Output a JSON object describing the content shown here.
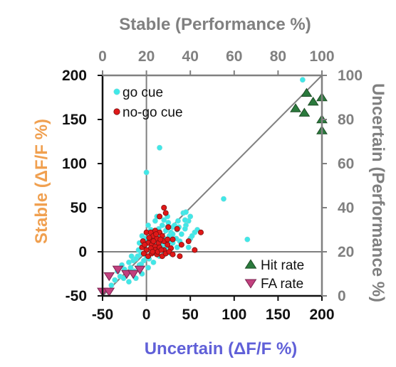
{
  "chart_data": {
    "type": "scatter",
    "title": "",
    "xlabel": "Uncertain (ΔF/F %)",
    "ylabel": "Stable (ΔF/F %)",
    "top_xlabel": "Stable (Performance %)",
    "right_ylabel": "Uncertain (Performance %)",
    "xlim": [
      -50,
      200
    ],
    "ylim": [
      -50,
      200
    ],
    "x_ticks": [
      "-50",
      "0",
      "50",
      "100",
      "150",
      "200"
    ],
    "y_ticks": [
      "-50",
      "0",
      "50",
      "100",
      "150",
      "200"
    ],
    "top_xlim": [
      0,
      100
    ],
    "top_ticks": [
      "0",
      "20",
      "40",
      "60",
      "80",
      "100"
    ],
    "right_ylim": [
      0,
      100
    ],
    "right_ticks": [
      "0",
      "20",
      "40",
      "60",
      "80",
      "100"
    ],
    "grid": false,
    "reference_lines": {
      "x": 0,
      "y": 0,
      "diagonal": true
    },
    "legend_upper": {
      "placement": "top-left"
    },
    "legend_lower": {
      "placement": "bottom-right"
    },
    "colors": {
      "go": "#40e8e8",
      "nogo": "#e01818",
      "hit": "#2a7a3c",
      "fa": "#c2407e",
      "axis_left_title": "#f0a050",
      "axis_bottom_title": "#6060d8",
      "gray": "#808080"
    },
    "series": [
      {
        "name": "go cue",
        "kind": "dF/F",
        "marker": "circle",
        "points": [
          [
            178,
            195
          ],
          [
            15,
            118
          ],
          [
            0,
            90
          ],
          [
            88,
            60
          ],
          [
            115,
            14
          ],
          [
            48,
            35
          ],
          [
            50,
            15
          ],
          [
            40,
            20
          ],
          [
            45,
            30
          ],
          [
            35,
            25
          ],
          [
            30,
            28
          ],
          [
            25,
            33
          ],
          [
            28,
            22
          ],
          [
            38,
            12
          ],
          [
            50,
            40
          ],
          [
            42,
            44
          ],
          [
            45,
            45
          ],
          [
            20,
            15
          ],
          [
            15,
            20
          ],
          [
            10,
            18
          ],
          [
            5,
            25
          ],
          [
            -5,
            18
          ],
          [
            -8,
            10
          ],
          [
            2,
            30
          ],
          [
            8,
            22
          ],
          [
            12,
            12
          ],
          [
            18,
            8
          ],
          [
            22,
            5
          ],
          [
            26,
            18
          ],
          [
            30,
            10
          ],
          [
            34,
            15
          ],
          [
            32,
            30
          ],
          [
            36,
            35
          ],
          [
            24,
            28
          ],
          [
            18,
            30
          ],
          [
            14,
            26
          ],
          [
            6,
            14
          ],
          [
            -2,
            6
          ],
          [
            -10,
            -5
          ],
          [
            -15,
            -10
          ],
          [
            -20,
            -12
          ],
          [
            -25,
            -20
          ],
          [
            -30,
            -28
          ],
          [
            -28,
            -15
          ],
          [
            -22,
            -25
          ],
          [
            -18,
            -18
          ],
          [
            -12,
            -8
          ],
          [
            -6,
            -2
          ],
          [
            -3,
            -10
          ],
          [
            0,
            -5
          ],
          [
            3,
            -8
          ],
          [
            6,
            3
          ],
          [
            9,
            6
          ],
          [
            -8,
            -15
          ],
          [
            -14,
            -22
          ],
          [
            -5,
            -25
          ],
          [
            -26,
            -30
          ],
          [
            -36,
            -32
          ],
          [
            -40,
            -38
          ],
          [
            -33,
            -22
          ],
          [
            -17,
            -5
          ],
          [
            -9,
            2
          ],
          [
            10,
            35
          ],
          [
            12,
            40
          ],
          [
            20,
            36
          ],
          [
            26,
            12
          ],
          [
            40,
            8
          ],
          [
            44,
            26
          ],
          [
            55,
            22
          ],
          [
            52,
            18
          ],
          [
            58,
            25
          ],
          [
            48,
            5
          ],
          [
            15,
            -5
          ],
          [
            20,
            -3
          ],
          [
            8,
            -12
          ],
          [
            2,
            -18
          ],
          [
            -12,
            -30
          ],
          [
            -20,
            -34
          ],
          [
            35,
            5
          ],
          [
            28,
            -2
          ],
          [
            4,
            10
          ],
          [
            -1,
            15
          ],
          [
            16,
            4
          ],
          [
            22,
            24
          ],
          [
            30,
            20
          ],
          [
            37,
            28
          ],
          [
            44,
            36
          ],
          [
            24,
            40
          ],
          [
            16,
            10
          ],
          [
            -6,
            -14
          ]
        ]
      },
      {
        "name": "no-go cue",
        "kind": "dF/F",
        "marker": "circle",
        "points": [
          [
            20,
            50
          ],
          [
            22,
            44
          ],
          [
            15,
            40
          ],
          [
            48,
            12
          ],
          [
            62,
            22
          ],
          [
            40,
            8
          ],
          [
            38,
            -5
          ],
          [
            55,
            2
          ],
          [
            25,
            28
          ],
          [
            35,
            26
          ],
          [
            0,
            22
          ],
          [
            5,
            22
          ],
          [
            10,
            24
          ],
          [
            15,
            22
          ],
          [
            18,
            18
          ],
          [
            8,
            18
          ],
          [
            12,
            15
          ],
          [
            4,
            14
          ],
          [
            -4,
            12
          ],
          [
            -5,
            5
          ],
          [
            2,
            10
          ],
          [
            6,
            8
          ],
          [
            10,
            6
          ],
          [
            14,
            10
          ],
          [
            20,
            12
          ],
          [
            24,
            8
          ],
          [
            28,
            4
          ],
          [
            20,
            2
          ],
          [
            15,
            5
          ],
          [
            10,
            2
          ],
          [
            5,
            4
          ],
          [
            0,
            2
          ],
          [
            -3,
            -2
          ],
          [
            2,
            -5
          ],
          [
            6,
            -2
          ],
          [
            12,
            -3
          ],
          [
            18,
            -5
          ],
          [
            22,
            -2
          ],
          [
            26,
            0
          ],
          [
            30,
            -3
          ],
          [
            8,
            12
          ],
          [
            16,
            14
          ],
          [
            3,
            16
          ],
          [
            -2,
            8
          ],
          [
            7,
            0
          ],
          [
            13,
            0
          ],
          [
            17,
            2
          ],
          [
            24,
            14
          ],
          [
            30,
            14
          ],
          [
            11,
            20
          ]
        ]
      },
      {
        "name": "Hit rate",
        "kind": "performance",
        "marker": "triangle-up",
        "points": [
          [
            93,
            92
          ],
          [
            100,
            90
          ],
          [
            96,
            88
          ],
          [
            88,
            85
          ],
          [
            92,
            83
          ],
          [
            100,
            80
          ],
          [
            100,
            75
          ]
        ]
      },
      {
        "name": "FA rate",
        "kind": "performance",
        "marker": "triangle-down",
        "points": [
          [
            7,
            12
          ],
          [
            11,
            10
          ],
          [
            14,
            10
          ],
          [
            17,
            12
          ],
          [
            3,
            9
          ],
          [
            0,
            2
          ],
          [
            3,
            2
          ]
        ]
      }
    ]
  }
}
